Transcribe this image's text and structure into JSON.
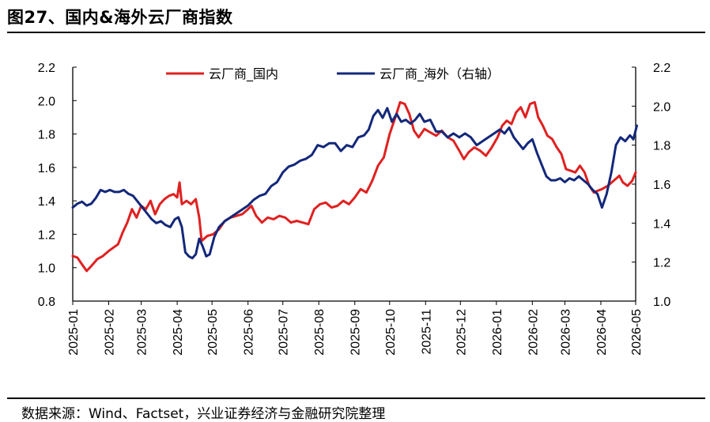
{
  "header": {
    "title": "图27、国内&海外云厂商指数"
  },
  "footer": {
    "source": "数据来源：Wind、Factset，兴业证券经济与金融研究院整理"
  },
  "chart_data": {
    "type": "line",
    "title": "图27、国内&海外云厂商指数",
    "xlabel": "",
    "ylabel": "",
    "x_ticks": [
      "2025-01",
      "2025-02",
      "2025-03",
      "2025-04",
      "2025-05",
      "2025-06",
      "2025-07",
      "2025-08",
      "2025-09",
      "2025-10",
      "2025-11",
      "2025-12",
      "2026-01",
      "2026-02",
      "2026-03",
      "2026-04",
      "2026-05"
    ],
    "y_left": {
      "lim": [
        0.8,
        2.2
      ],
      "ticks": [
        "0.8",
        "1.0",
        "1.2",
        "1.4",
        "1.6",
        "1.8",
        "2.0",
        "2.2"
      ]
    },
    "y_right": {
      "lim": [
        1.0,
        2.2
      ],
      "ticks": [
        "1.0",
        "1.2",
        "1.4",
        "1.6",
        "1.8",
        "2.0",
        "2.2"
      ]
    },
    "legend_position": "top",
    "grid": false,
    "series": [
      {
        "name": "云厂商_国内",
        "axis": "left",
        "color": "#e02020",
        "points": [
          [
            "2025-01-01",
            1.07
          ],
          [
            "2025-01-05",
            1.06
          ],
          [
            "2025-01-09",
            1.02
          ],
          [
            "2025-01-13",
            0.98
          ],
          [
            "2025-01-17",
            1.01
          ],
          [
            "2025-01-22",
            1.05
          ],
          [
            "2025-01-27",
            1.07
          ],
          [
            "2025-02-01",
            1.1
          ],
          [
            "2025-02-05",
            1.12
          ],
          [
            "2025-02-09",
            1.14
          ],
          [
            "2025-02-13",
            1.21
          ],
          [
            "2025-02-17",
            1.27
          ],
          [
            "2025-02-21",
            1.35
          ],
          [
            "2025-02-25",
            1.3
          ],
          [
            "2025-03-01",
            1.37
          ],
          [
            "2025-03-05",
            1.35
          ],
          [
            "2025-03-09",
            1.4
          ],
          [
            "2025-03-13",
            1.32
          ],
          [
            "2025-03-17",
            1.38
          ],
          [
            "2025-03-21",
            1.41
          ],
          [
            "2025-03-25",
            1.43
          ],
          [
            "2025-03-29",
            1.44
          ],
          [
            "2025-04-01",
            1.42
          ],
          [
            "2025-04-03",
            1.51
          ],
          [
            "2025-04-05",
            1.38
          ],
          [
            "2025-04-09",
            1.4
          ],
          [
            "2025-04-13",
            1.38
          ],
          [
            "2025-04-17",
            1.41
          ],
          [
            "2025-04-20",
            1.3
          ],
          [
            "2025-04-22",
            1.16
          ],
          [
            "2025-04-27",
            1.19
          ],
          [
            "2025-05-02",
            1.2
          ],
          [
            "2025-05-07",
            1.23
          ],
          [
            "2025-05-12",
            1.28
          ],
          [
            "2025-05-17",
            1.3
          ],
          [
            "2025-05-22",
            1.31
          ],
          [
            "2025-05-27",
            1.32
          ],
          [
            "2025-06-01",
            1.35
          ],
          [
            "2025-06-04",
            1.37
          ],
          [
            "2025-06-08",
            1.31
          ],
          [
            "2025-06-13",
            1.27
          ],
          [
            "2025-06-18",
            1.3
          ],
          [
            "2025-06-23",
            1.29
          ],
          [
            "2025-06-28",
            1.31
          ],
          [
            "2025-07-03",
            1.3
          ],
          [
            "2025-07-08",
            1.27
          ],
          [
            "2025-07-13",
            1.28
          ],
          [
            "2025-07-18",
            1.27
          ],
          [
            "2025-07-23",
            1.26
          ],
          [
            "2025-07-28",
            1.35
          ],
          [
            "2025-08-02",
            1.38
          ],
          [
            "2025-08-07",
            1.39
          ],
          [
            "2025-08-12",
            1.36
          ],
          [
            "2025-08-17",
            1.37
          ],
          [
            "2025-08-22",
            1.4
          ],
          [
            "2025-08-27",
            1.38
          ],
          [
            "2025-09-01",
            1.42
          ],
          [
            "2025-09-06",
            1.47
          ],
          [
            "2025-09-11",
            1.45
          ],
          [
            "2025-09-16",
            1.52
          ],
          [
            "2025-09-21",
            1.61
          ],
          [
            "2025-09-26",
            1.66
          ],
          [
            "2025-10-01",
            1.8
          ],
          [
            "2025-10-06",
            1.9
          ],
          [
            "2025-10-10",
            1.99
          ],
          [
            "2025-10-14",
            1.98
          ],
          [
            "2025-10-18",
            1.92
          ],
          [
            "2025-10-22",
            1.82
          ],
          [
            "2025-10-26",
            1.78
          ],
          [
            "2025-10-31",
            1.83
          ],
          [
            "2025-11-05",
            1.81
          ],
          [
            "2025-11-10",
            1.79
          ],
          [
            "2025-11-15",
            1.82
          ],
          [
            "2025-11-20",
            1.78
          ],
          [
            "2025-11-25",
            1.76
          ],
          [
            "2025-11-30",
            1.7
          ],
          [
            "2025-12-04",
            1.65
          ],
          [
            "2025-12-08",
            1.69
          ],
          [
            "2025-12-13",
            1.72
          ],
          [
            "2025-12-18",
            1.7
          ],
          [
            "2025-12-23",
            1.67
          ],
          [
            "2025-12-28",
            1.72
          ],
          [
            "2026-01-02",
            1.78
          ],
          [
            "2026-01-06",
            1.85
          ],
          [
            "2026-01-10",
            1.88
          ],
          [
            "2026-01-14",
            1.86
          ],
          [
            "2026-01-18",
            1.93
          ],
          [
            "2026-01-22",
            1.96
          ],
          [
            "2026-01-26",
            1.9
          ],
          [
            "2026-01-30",
            1.98
          ],
          [
            "2026-02-03",
            1.99
          ],
          [
            "2026-02-06",
            1.9
          ],
          [
            "2026-02-10",
            1.85
          ],
          [
            "2026-02-14",
            1.79
          ],
          [
            "2026-02-18",
            1.77
          ],
          [
            "2026-02-22",
            1.72
          ],
          [
            "2026-02-26",
            1.68
          ],
          [
            "2026-03-02",
            1.59
          ],
          [
            "2026-03-06",
            1.58
          ],
          [
            "2026-03-10",
            1.57
          ],
          [
            "2026-03-14",
            1.61
          ],
          [
            "2026-03-18",
            1.57
          ],
          [
            "2026-03-22",
            1.49
          ],
          [
            "2026-03-26",
            1.45
          ],
          [
            "2026-03-29",
            1.46
          ],
          [
            "2026-04-02",
            1.47
          ],
          [
            "2026-04-07",
            1.49
          ],
          [
            "2026-04-12",
            1.52
          ],
          [
            "2026-04-17",
            1.55
          ],
          [
            "2026-04-20",
            1.51
          ],
          [
            "2026-04-24",
            1.49
          ],
          [
            "2026-04-28",
            1.52
          ],
          [
            "2026-05-01",
            1.57
          ]
        ]
      },
      {
        "name": "云厂商_海外（右轴）",
        "axis": "right",
        "color": "#13287a",
        "points": [
          [
            "2025-01-01",
            1.48
          ],
          [
            "2025-01-05",
            1.5
          ],
          [
            "2025-01-09",
            1.51
          ],
          [
            "2025-01-13",
            1.49
          ],
          [
            "2025-01-17",
            1.5
          ],
          [
            "2025-01-21",
            1.53
          ],
          [
            "2025-01-25",
            1.57
          ],
          [
            "2025-01-29",
            1.56
          ],
          [
            "2025-02-02",
            1.57
          ],
          [
            "2025-02-06",
            1.56
          ],
          [
            "2025-02-10",
            1.56
          ],
          [
            "2025-02-14",
            1.57
          ],
          [
            "2025-02-18",
            1.55
          ],
          [
            "2025-02-22",
            1.54
          ],
          [
            "2025-02-26",
            1.51
          ],
          [
            "2025-03-02",
            1.48
          ],
          [
            "2025-03-06",
            1.45
          ],
          [
            "2025-03-10",
            1.42
          ],
          [
            "2025-03-14",
            1.4
          ],
          [
            "2025-03-18",
            1.41
          ],
          [
            "2025-03-22",
            1.39
          ],
          [
            "2025-03-26",
            1.38
          ],
          [
            "2025-03-30",
            1.42
          ],
          [
            "2025-04-02",
            1.43
          ],
          [
            "2025-04-05",
            1.38
          ],
          [
            "2025-04-08",
            1.25
          ],
          [
            "2025-04-11",
            1.23
          ],
          [
            "2025-04-14",
            1.22
          ],
          [
            "2025-04-17",
            1.24
          ],
          [
            "2025-04-20",
            1.32
          ],
          [
            "2025-04-23",
            1.28
          ],
          [
            "2025-04-26",
            1.23
          ],
          [
            "2025-04-29",
            1.24
          ],
          [
            "2025-05-03",
            1.33
          ],
          [
            "2025-05-07",
            1.38
          ],
          [
            "2025-05-12",
            1.41
          ],
          [
            "2025-05-17",
            1.43
          ],
          [
            "2025-05-22",
            1.45
          ],
          [
            "2025-05-27",
            1.47
          ],
          [
            "2025-06-01",
            1.49
          ],
          [
            "2025-06-06",
            1.52
          ],
          [
            "2025-06-11",
            1.54
          ],
          [
            "2025-06-16",
            1.55
          ],
          [
            "2025-06-21",
            1.59
          ],
          [
            "2025-06-26",
            1.61
          ],
          [
            "2025-07-01",
            1.66
          ],
          [
            "2025-07-06",
            1.69
          ],
          [
            "2025-07-11",
            1.7
          ],
          [
            "2025-07-16",
            1.72
          ],
          [
            "2025-07-21",
            1.73
          ],
          [
            "2025-07-26",
            1.75
          ],
          [
            "2025-07-31",
            1.8
          ],
          [
            "2025-08-05",
            1.79
          ],
          [
            "2025-08-10",
            1.81
          ],
          [
            "2025-08-15",
            1.81
          ],
          [
            "2025-08-20",
            1.77
          ],
          [
            "2025-08-25",
            1.8
          ],
          [
            "2025-08-30",
            1.79
          ],
          [
            "2025-09-04",
            1.84
          ],
          [
            "2025-09-09",
            1.85
          ],
          [
            "2025-09-13",
            1.88
          ],
          [
            "2025-09-17",
            1.95
          ],
          [
            "2025-09-21",
            1.98
          ],
          [
            "2025-09-25",
            1.94
          ],
          [
            "2025-09-29",
            1.99
          ],
          [
            "2025-10-03",
            1.92
          ],
          [
            "2025-10-07",
            1.96
          ],
          [
            "2025-10-11",
            1.92
          ],
          [
            "2025-10-15",
            1.93
          ],
          [
            "2025-10-19",
            1.91
          ],
          [
            "2025-10-23",
            1.93
          ],
          [
            "2025-10-27",
            1.96
          ],
          [
            "2025-10-31",
            1.92
          ],
          [
            "2025-11-05",
            1.93
          ],
          [
            "2025-11-10",
            1.87
          ],
          [
            "2025-11-15",
            1.87
          ],
          [
            "2025-11-20",
            1.84
          ],
          [
            "2025-11-25",
            1.86
          ],
          [
            "2025-11-30",
            1.84
          ],
          [
            "2025-12-05",
            1.86
          ],
          [
            "2025-12-10",
            1.84
          ],
          [
            "2025-12-15",
            1.8
          ],
          [
            "2025-12-20",
            1.82
          ],
          [
            "2025-12-25",
            1.84
          ],
          [
            "2025-12-30",
            1.86
          ],
          [
            "2026-01-04",
            1.88
          ],
          [
            "2026-01-08",
            1.86
          ],
          [
            "2026-01-12",
            1.89
          ],
          [
            "2026-01-16",
            1.84
          ],
          [
            "2026-01-20",
            1.81
          ],
          [
            "2026-01-24",
            1.78
          ],
          [
            "2026-01-28",
            1.81
          ],
          [
            "2026-02-01",
            1.83
          ],
          [
            "2026-02-05",
            1.76
          ],
          [
            "2026-02-09",
            1.7
          ],
          [
            "2026-02-13",
            1.64
          ],
          [
            "2026-02-17",
            1.62
          ],
          [
            "2026-02-21",
            1.62
          ],
          [
            "2026-02-25",
            1.63
          ],
          [
            "2026-03-01",
            1.61
          ],
          [
            "2026-03-05",
            1.63
          ],
          [
            "2026-03-09",
            1.62
          ],
          [
            "2026-03-13",
            1.64
          ],
          [
            "2026-03-17",
            1.62
          ],
          [
            "2026-03-21",
            1.6
          ],
          [
            "2026-03-25",
            1.57
          ],
          [
            "2026-03-29",
            1.55
          ],
          [
            "2026-04-02",
            1.48
          ],
          [
            "2026-04-06",
            1.55
          ],
          [
            "2026-04-10",
            1.66
          ],
          [
            "2026-04-14",
            1.8
          ],
          [
            "2026-04-18",
            1.84
          ],
          [
            "2026-04-22",
            1.82
          ],
          [
            "2026-04-26",
            1.85
          ],
          [
            "2026-04-29",
            1.83
          ],
          [
            "2026-05-02",
            1.9
          ]
        ]
      }
    ]
  }
}
